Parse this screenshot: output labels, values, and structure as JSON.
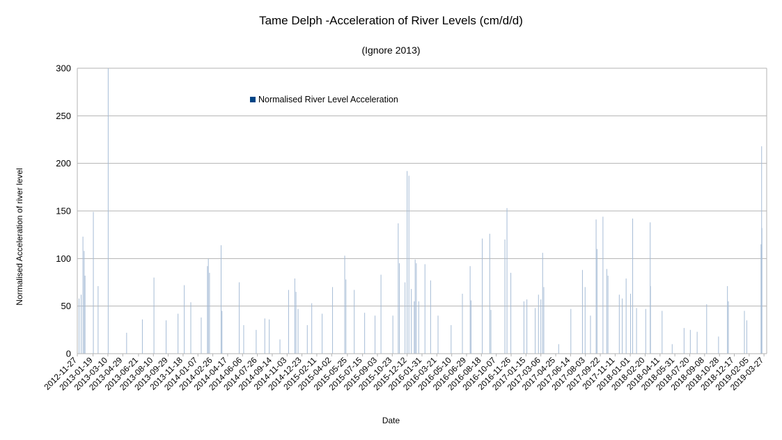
{
  "chart_data": {
    "type": "bar",
    "title": "Tame Delph -Acceleration of River Levels (cm/d/d)",
    "subtitle": "(Ignore 2013)",
    "xlabel": "Date",
    "ylabel": "Normalised Acceleration of river level",
    "ylim": [
      0,
      300
    ],
    "y_ticks": [
      0,
      50,
      100,
      150,
      200,
      250,
      300
    ],
    "x_range": [
      "2012-11-27",
      "2019-04-05"
    ],
    "x_tick_labels": [
      "2012-11-27",
      "2013-01-19",
      "2013-03-10",
      "2013-04-29",
      "2013-06-21",
      "2013-08-10",
      "2013-09-29",
      "2013-11-18",
      "2014-01-07",
      "2014-02-26",
      "2014-04-17",
      "2014-06-06",
      "2014-07-26",
      "2014-09-14",
      "2014-11-03",
      "2014-12-23",
      "2015-02-11",
      "2015-04-02",
      "2015-05-25",
      "2015-07-15",
      "2015-09-03",
      "2015-10-23",
      "2015-12-12",
      "2016-01-31",
      "2016-03-21",
      "2016-05-10",
      "2016-06-29",
      "2016-08-18",
      "2016-10-07",
      "2016-11-26",
      "2017-01-15",
      "2017-03-06",
      "2017-04-25",
      "2017-06-14",
      "2017-08-03",
      "2017-09-22",
      "2017-11-11",
      "2018-01-01",
      "2018-02-20",
      "2018-04-11",
      "2018-05-31",
      "2018-07-20",
      "2018-09-08",
      "2018-10-28",
      "2018-12-17",
      "2019-02-05",
      "2019-03-27"
    ],
    "grid": true,
    "legend_position": "top-left inside plot",
    "colors": {
      "bars": "#a6bcd6",
      "legend_swatch": "#004586",
      "grid": "#b3b3b3",
      "axis": "#b3b3b3"
    },
    "series": [
      {
        "name": "Normalised River Level Acceleration",
        "peaks": [
          {
            "x": "2012-12-03",
            "y": 58
          },
          {
            "x": "2012-12-10",
            "y": 62
          },
          {
            "x": "2012-12-16",
            "y": 123
          },
          {
            "x": "2012-12-20",
            "y": 108
          },
          {
            "x": "2012-12-23",
            "y": 82
          },
          {
            "x": "2013-01-20",
            "y": 149
          },
          {
            "x": "2013-02-05",
            "y": 71
          },
          {
            "x": "2013-03-11",
            "y": 300
          },
          {
            "x": "2013-05-12",
            "y": 22
          },
          {
            "x": "2013-07-04",
            "y": 36
          },
          {
            "x": "2013-08-12",
            "y": 80
          },
          {
            "x": "2013-09-22",
            "y": 35
          },
          {
            "x": "2013-11-01",
            "y": 42
          },
          {
            "x": "2013-11-22",
            "y": 72
          },
          {
            "x": "2013-12-14",
            "y": 54
          },
          {
            "x": "2014-01-18",
            "y": 38
          },
          {
            "x": "2014-02-08",
            "y": 92
          },
          {
            "x": "2014-02-11",
            "y": 100
          },
          {
            "x": "2014-02-15",
            "y": 85
          },
          {
            "x": "2014-03-26",
            "y": 114
          },
          {
            "x": "2014-03-29",
            "y": 45
          },
          {
            "x": "2014-05-26",
            "y": 75
          },
          {
            "x": "2014-06-10",
            "y": 30
          },
          {
            "x": "2014-07-22",
            "y": 25
          },
          {
            "x": "2014-08-20",
            "y": 37
          },
          {
            "x": "2014-09-04",
            "y": 36
          },
          {
            "x": "2014-10-10",
            "y": 15
          },
          {
            "x": "2014-11-08",
            "y": 67
          },
          {
            "x": "2014-11-29",
            "y": 79
          },
          {
            "x": "2014-12-03",
            "y": 65
          },
          {
            "x": "2014-12-10",
            "y": 47
          },
          {
            "x": "2015-01-10",
            "y": 30
          },
          {
            "x": "2015-01-25",
            "y": 53
          },
          {
            "x": "2015-03-01",
            "y": 42
          },
          {
            "x": "2015-04-05",
            "y": 70
          },
          {
            "x": "2015-05-16",
            "y": 103
          },
          {
            "x": "2015-05-20",
            "y": 78
          },
          {
            "x": "2015-06-17",
            "y": 67
          },
          {
            "x": "2015-07-22",
            "y": 43
          },
          {
            "x": "2015-08-26",
            "y": 40
          },
          {
            "x": "2015-09-15",
            "y": 83
          },
          {
            "x": "2015-10-25",
            "y": 40
          },
          {
            "x": "2015-11-12",
            "y": 137
          },
          {
            "x": "2015-11-16",
            "y": 95
          },
          {
            "x": "2015-12-05",
            "y": 75
          },
          {
            "x": "2015-12-12",
            "y": 192
          },
          {
            "x": "2015-12-18",
            "y": 187
          },
          {
            "x": "2015-12-26",
            "y": 68
          },
          {
            "x": "2016-01-05",
            "y": 55
          },
          {
            "x": "2016-01-08",
            "y": 99
          },
          {
            "x": "2016-01-12",
            "y": 95
          },
          {
            "x": "2016-01-20",
            "y": 55
          },
          {
            "x": "2016-02-10",
            "y": 94
          },
          {
            "x": "2016-02-29",
            "y": 77
          },
          {
            "x": "2016-03-25",
            "y": 40
          },
          {
            "x": "2016-05-08",
            "y": 30
          },
          {
            "x": "2016-06-15",
            "y": 63
          },
          {
            "x": "2016-07-11",
            "y": 92
          },
          {
            "x": "2016-07-14",
            "y": 56
          },
          {
            "x": "2016-08-21",
            "y": 121
          },
          {
            "x": "2016-09-15",
            "y": 126
          },
          {
            "x": "2016-09-19",
            "y": 46
          },
          {
            "x": "2016-11-05",
            "y": 120
          },
          {
            "x": "2016-11-12",
            "y": 153
          },
          {
            "x": "2016-11-25",
            "y": 85
          },
          {
            "x": "2017-01-08",
            "y": 55
          },
          {
            "x": "2017-01-18",
            "y": 57
          },
          {
            "x": "2017-02-15",
            "y": 48
          },
          {
            "x": "2017-02-26",
            "y": 62
          },
          {
            "x": "2017-03-06",
            "y": 57
          },
          {
            "x": "2017-03-12",
            "y": 106
          },
          {
            "x": "2017-03-16",
            "y": 70
          },
          {
            "x": "2017-05-05",
            "y": 10
          },
          {
            "x": "2017-06-15",
            "y": 47
          },
          {
            "x": "2017-07-24",
            "y": 88
          },
          {
            "x": "2017-08-02",
            "y": 70
          },
          {
            "x": "2017-08-20",
            "y": 40
          },
          {
            "x": "2017-09-08",
            "y": 141
          },
          {
            "x": "2017-09-11",
            "y": 110
          },
          {
            "x": "2017-10-01",
            "y": 144
          },
          {
            "x": "2017-10-14",
            "y": 89
          },
          {
            "x": "2017-10-18",
            "y": 82
          },
          {
            "x": "2017-11-25",
            "y": 62
          },
          {
            "x": "2017-12-05",
            "y": 58
          },
          {
            "x": "2017-12-18",
            "y": 79
          },
          {
            "x": "2018-01-02",
            "y": 63
          },
          {
            "x": "2018-01-09",
            "y": 142
          },
          {
            "x": "2018-01-22",
            "y": 48
          },
          {
            "x": "2018-02-22",
            "y": 47
          },
          {
            "x": "2018-03-09",
            "y": 138
          },
          {
            "x": "2018-03-10",
            "y": 71
          },
          {
            "x": "2018-04-18",
            "y": 45
          },
          {
            "x": "2018-05-22",
            "y": 10
          },
          {
            "x": "2018-07-01",
            "y": 27
          },
          {
            "x": "2018-07-22",
            "y": 25
          },
          {
            "x": "2018-08-14",
            "y": 23
          },
          {
            "x": "2018-09-15",
            "y": 52
          },
          {
            "x": "2018-10-25",
            "y": 18
          },
          {
            "x": "2018-11-24",
            "y": 71
          },
          {
            "x": "2018-11-27",
            "y": 55
          },
          {
            "x": "2019-01-20",
            "y": 45
          },
          {
            "x": "2019-01-28",
            "y": 35
          },
          {
            "x": "2019-03-17",
            "y": 115
          },
          {
            "x": "2019-03-19",
            "y": 218
          },
          {
            "x": "2019-03-20",
            "y": 132
          }
        ]
      }
    ]
  }
}
